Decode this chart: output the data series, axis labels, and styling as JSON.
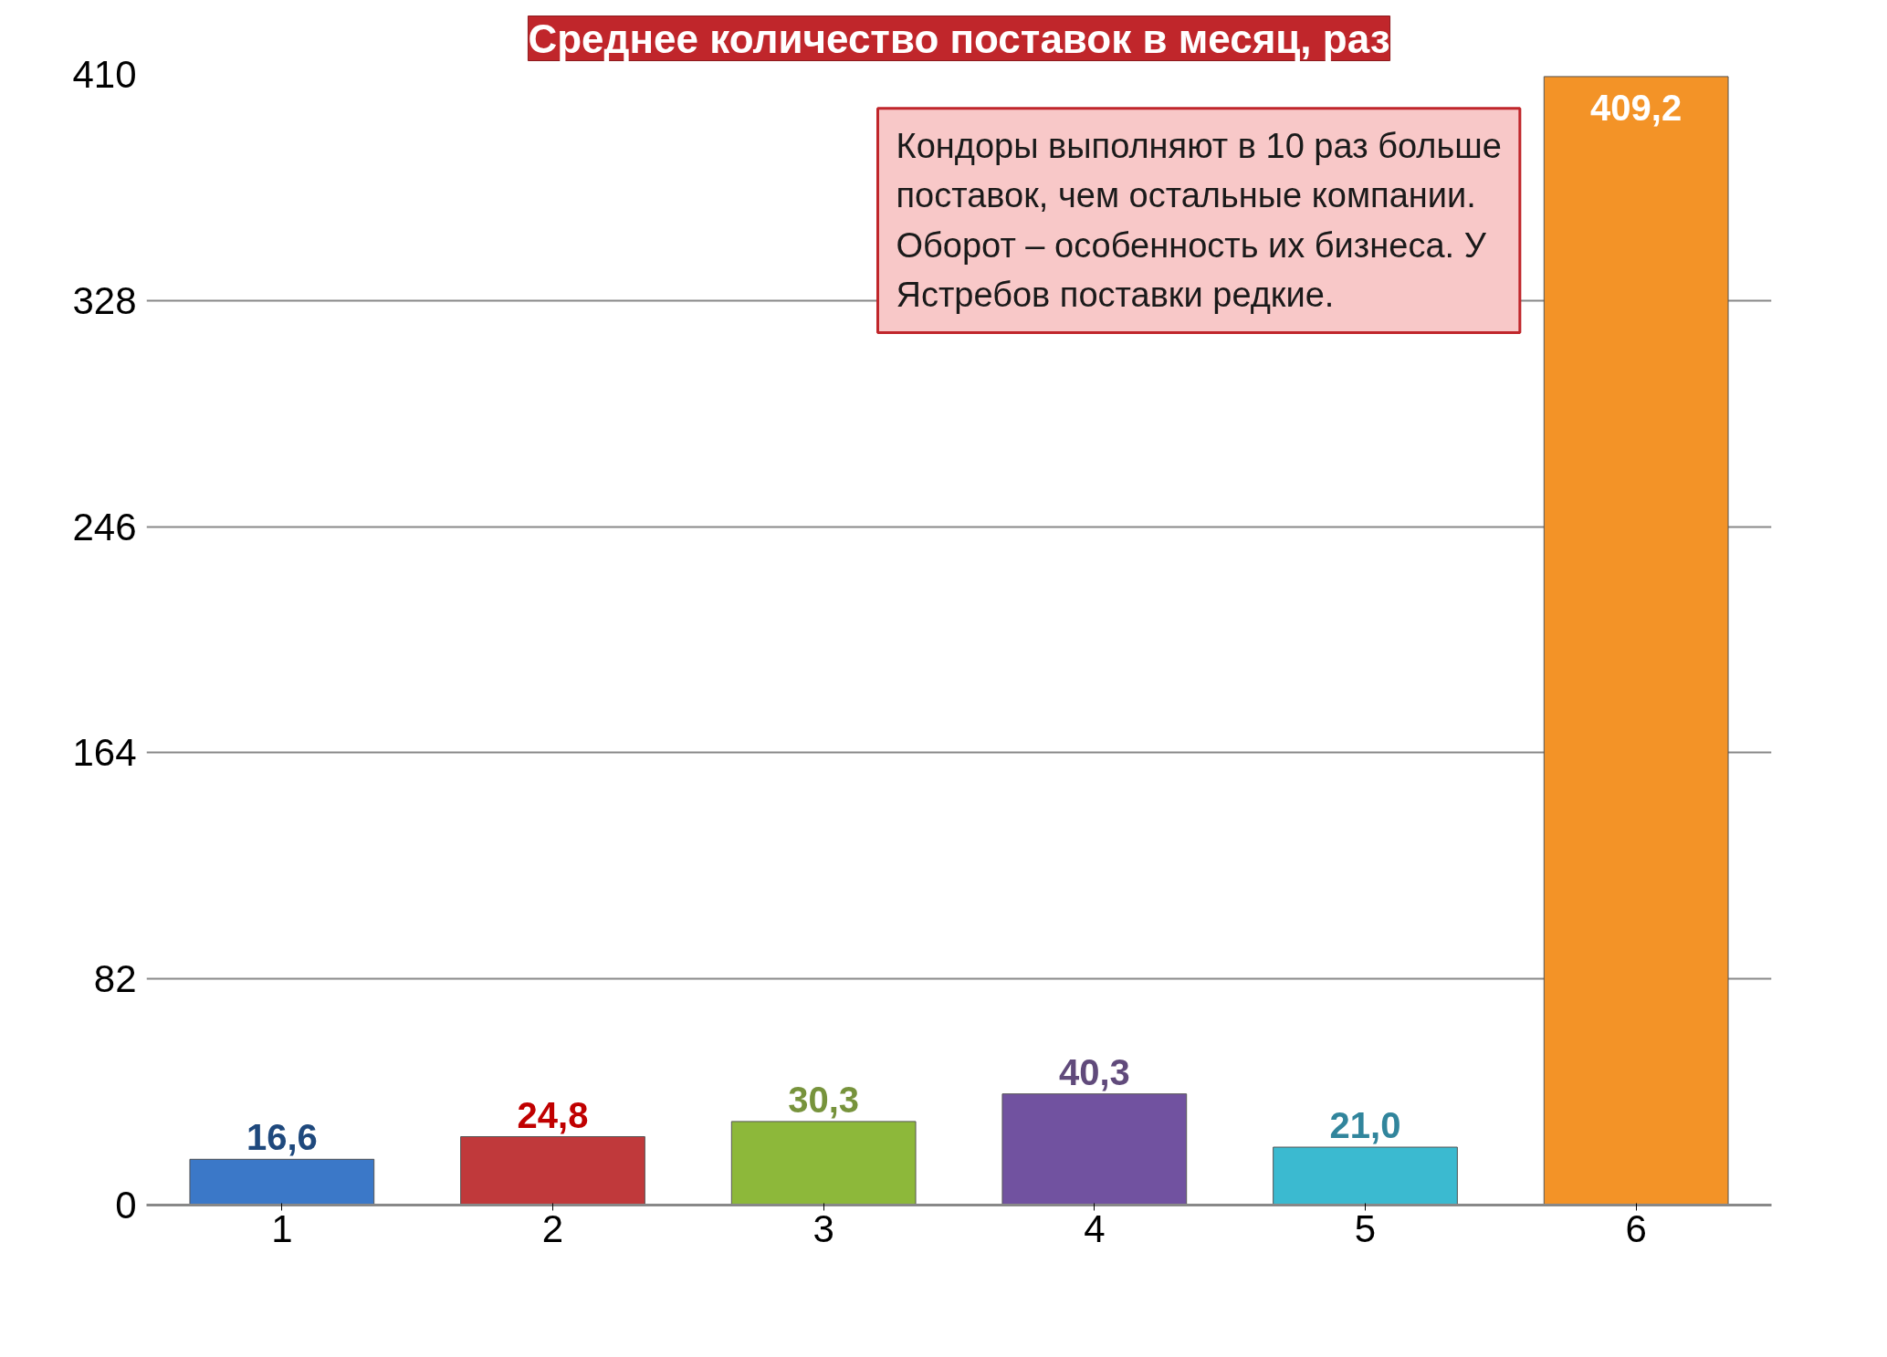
{
  "chart_data": {
    "type": "bar",
    "title": "Среднее количество поставок в месяц, раз",
    "categories": [
      "1",
      "2",
      "3",
      "4",
      "5",
      "6"
    ],
    "values": [
      16.6,
      24.8,
      30.3,
      40.3,
      21.0,
      409.2
    ],
    "colors": [
      "#3b78c8",
      "#c0393b",
      "#8db83a",
      "#7152a0",
      "#3bbad0",
      "#f39327"
    ],
    "value_labels": [
      "16,6",
      "24,8",
      "30,3",
      "40,3",
      "21,0",
      "409,2"
    ],
    "ylim": [
      0,
      410
    ],
    "yticks": [
      0,
      82,
      164,
      246,
      328,
      410
    ],
    "grid": "y",
    "annotations": [
      "Кондоры выполняют в 10 раз больше поставок, чем остальные компании. Оборот – особенность их бизнеса. У Ястребов поставки редкие."
    ]
  }
}
